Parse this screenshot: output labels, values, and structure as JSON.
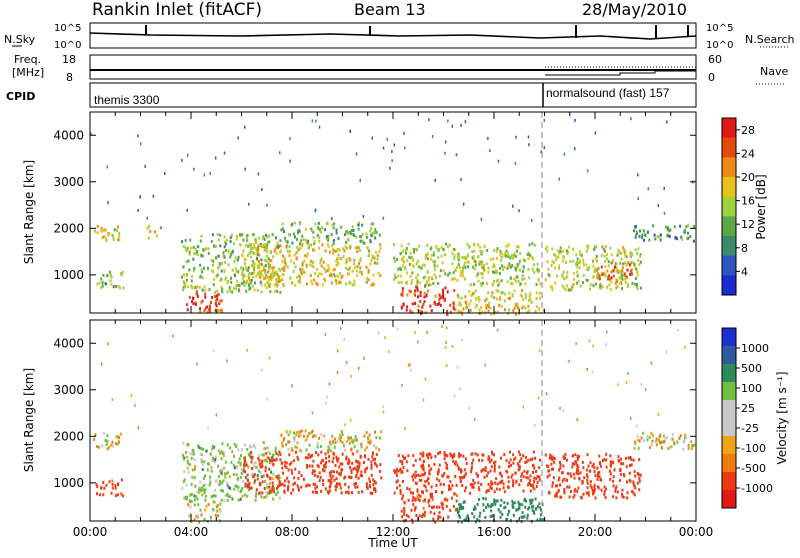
{
  "header": {
    "title": "Rankin Inlet (fitACF)",
    "beam": "Beam 13",
    "date": "28/May/2010"
  },
  "noise_panel": {
    "left_label": "N.Sky",
    "left_ticks": [
      "10^5",
      "10^0"
    ],
    "right_ticks": [
      "10^5",
      "10^0"
    ],
    "right_label": "N.Search"
  },
  "freq_panel": {
    "left_label_top": "Freq.",
    "left_label_unit": "[MHz]",
    "left_ticks": [
      "18",
      "8"
    ],
    "right_ticks": [
      "60",
      "0"
    ],
    "right_label": "Nave"
  },
  "cpid_panel": {
    "label": "CPID",
    "mode1": "themis 3300",
    "mode2": "normalsound (fast) 157"
  },
  "colors": {
    "power_scale": [
      "#1a2bd6",
      "#2f55c0",
      "#3b8a6a",
      "#5aa846",
      "#9ed23a",
      "#e7c21a",
      "#ee8a12",
      "#e34a10",
      "#e11818"
    ],
    "velocity_scale": [
      "#e11818",
      "#ee3a12",
      "#f07a10",
      "#f0a418",
      "#c8c8c8",
      "#c8c8c8",
      "#70c040",
      "#2f8a5a",
      "#2f5aa0",
      "#1c2fd0"
    ]
  },
  "chart_data": [
    {
      "type": "heatmap",
      "name": "power",
      "xlabel": "",
      "ylabel": "Slant Range [km]",
      "yticks": [
        "1000",
        "2000",
        "3000",
        "4000"
      ],
      "ylim": [
        180,
        4500
      ],
      "xlim": [
        0,
        24
      ],
      "colorbar_label": "Power [dB]",
      "colorbar_ticks": [
        "4",
        "8",
        "12",
        "16",
        "20",
        "24",
        "28"
      ],
      "colorbar_range": [
        0,
        30
      ],
      "echo_regions": [
        {
          "t0": 0.1,
          "t1": 1.2,
          "r0": 1750,
          "r1": 2100,
          "level": 18
        },
        {
          "t0": 0.2,
          "t1": 1.3,
          "r0": 750,
          "r1": 1100,
          "level": 14
        },
        {
          "t0": 2.2,
          "t1": 2.8,
          "r0": 1800,
          "r1": 2100,
          "level": 16
        },
        {
          "t0": 3.6,
          "t1": 7.5,
          "r0": 650,
          "r1": 1900,
          "level": 14
        },
        {
          "t0": 3.8,
          "t1": 5.2,
          "r0": 180,
          "r1": 650,
          "level": 26
        },
        {
          "t0": 6.0,
          "t1": 11.5,
          "r0": 800,
          "r1": 1700,
          "level": 18
        },
        {
          "t0": 7.5,
          "t1": 11.5,
          "r0": 1700,
          "r1": 2150,
          "level": 12
        },
        {
          "t0": 12.3,
          "t1": 14.5,
          "r0": 180,
          "r1": 800,
          "level": 27
        },
        {
          "t0": 12.0,
          "t1": 17.8,
          "r0": 800,
          "r1": 1700,
          "level": 15
        },
        {
          "t0": 14.5,
          "t1": 18.0,
          "r0": 180,
          "r1": 700,
          "level": 18
        },
        {
          "t0": 18.0,
          "t1": 21.8,
          "r0": 700,
          "r1": 1650,
          "level": 16
        },
        {
          "t0": 20.0,
          "t1": 21.5,
          "r0": 900,
          "r1": 1300,
          "level": 24
        },
        {
          "t0": 21.5,
          "t1": 23.9,
          "r0": 1750,
          "r1": 2100,
          "level": 10
        }
      ]
    },
    {
      "type": "heatmap",
      "name": "velocity",
      "xlabel": "Time UT",
      "ylabel": "Slant Range [km]",
      "yticks": [
        "1000",
        "2000",
        "3000",
        "4000"
      ],
      "ylim": [
        180,
        4500
      ],
      "xticks": [
        "00:00",
        "04:00",
        "08:00",
        "12:00",
        "16:00",
        "20:00",
        "00:00"
      ],
      "xlim": [
        0,
        24
      ],
      "colorbar_label": "Velocity [m s⁻¹]",
      "colorbar_ticks": [
        "1000",
        "500",
        "100",
        "25",
        "-25",
        "-100",
        "-500",
        "-1000"
      ],
      "echo_regions": [
        {
          "t0": 0.1,
          "t1": 1.2,
          "r0": 1750,
          "r1": 2100,
          "level": 0
        },
        {
          "t0": 0.2,
          "t1": 1.3,
          "r0": 750,
          "r1": 1100,
          "level": -150
        },
        {
          "t0": 3.6,
          "t1": 7.5,
          "r0": 650,
          "r1": 1900,
          "level": 50
        },
        {
          "t0": 3.8,
          "t1": 5.2,
          "r0": 180,
          "r1": 650,
          "level": 10
        },
        {
          "t0": 6.0,
          "t1": 11.5,
          "r0": 800,
          "r1": 1700,
          "level": -200
        },
        {
          "t0": 7.5,
          "t1": 11.5,
          "r0": 1700,
          "r1": 2150,
          "level": 0
        },
        {
          "t0": 12.3,
          "t1": 14.5,
          "r0": 180,
          "r1": 800,
          "level": -150
        },
        {
          "t0": 12.0,
          "t1": 17.8,
          "r0": 800,
          "r1": 1700,
          "level": -200
        },
        {
          "t0": 14.5,
          "t1": 18.0,
          "r0": 180,
          "r1": 700,
          "level": 300
        },
        {
          "t0": 18.0,
          "t1": 21.8,
          "r0": 700,
          "r1": 1650,
          "level": -250
        },
        {
          "t0": 21.5,
          "t1": 23.9,
          "r0": 1750,
          "r1": 2100,
          "level": 0
        }
      ]
    }
  ]
}
